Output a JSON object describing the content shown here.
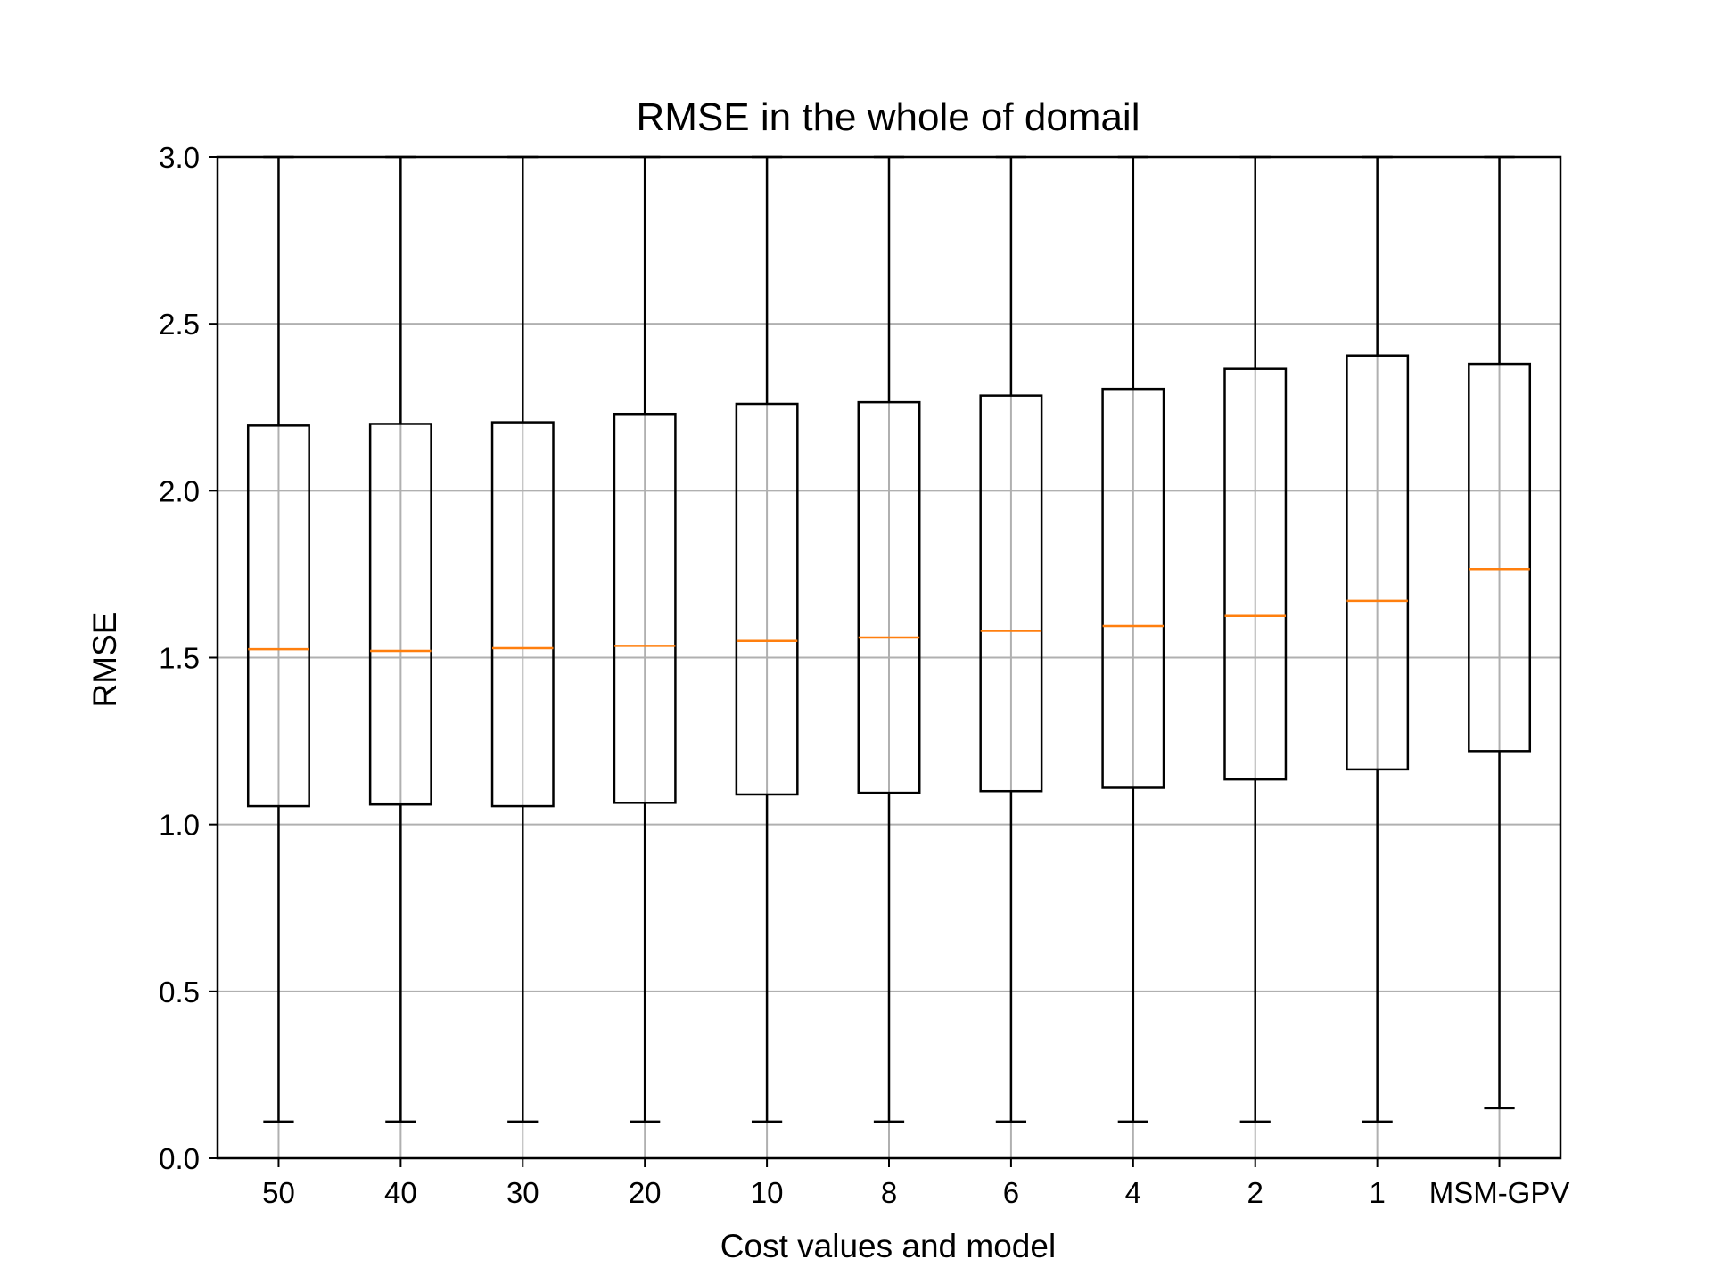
{
  "chart_data": {
    "type": "box",
    "title": "RMSE in the whole of domail",
    "xlabel": "Cost values and model",
    "ylabel": "RMSE",
    "ylim": [
      0.0,
      3.0
    ],
    "yticks": [
      "0.0",
      "0.5",
      "1.0",
      "1.5",
      "2.0",
      "2.5",
      "3.0"
    ],
    "ytick_values": [
      0.0,
      0.5,
      1.0,
      1.5,
      2.0,
      2.5,
      3.0
    ],
    "grid": true,
    "categories": [
      "50",
      "40",
      "30",
      "20",
      "10",
      "8",
      "6",
      "4",
      "2",
      "1",
      "MSM-GPV"
    ],
    "boxes": [
      {
        "whislo": 0.11,
        "q1": 1.055,
        "med": 1.525,
        "q3": 2.195,
        "whishi": 3.0
      },
      {
        "whislo": 0.11,
        "q1": 1.06,
        "med": 1.52,
        "q3": 2.2,
        "whishi": 3.0
      },
      {
        "whislo": 0.11,
        "q1": 1.055,
        "med": 1.528,
        "q3": 2.205,
        "whishi": 3.0
      },
      {
        "whislo": 0.11,
        "q1": 1.065,
        "med": 1.535,
        "q3": 2.23,
        "whishi": 3.0
      },
      {
        "whislo": 0.11,
        "q1": 1.09,
        "med": 1.55,
        "q3": 2.26,
        "whishi": 3.0
      },
      {
        "whislo": 0.11,
        "q1": 1.095,
        "med": 1.56,
        "q3": 2.265,
        "whishi": 3.0
      },
      {
        "whislo": 0.11,
        "q1": 1.1,
        "med": 1.58,
        "q3": 2.285,
        "whishi": 3.0
      },
      {
        "whislo": 0.11,
        "q1": 1.11,
        "med": 1.595,
        "q3": 2.305,
        "whishi": 3.0
      },
      {
        "whislo": 0.11,
        "q1": 1.135,
        "med": 1.625,
        "q3": 2.365,
        "whishi": 3.0
      },
      {
        "whislo": 0.11,
        "q1": 1.165,
        "med": 1.67,
        "q3": 2.405,
        "whishi": 3.0
      },
      {
        "whislo": 0.15,
        "q1": 1.22,
        "med": 1.765,
        "q3": 2.38,
        "whishi": 3.0
      }
    ],
    "colors": {
      "box": "#000000",
      "median": "#ff7f0e",
      "grid": "#b0b0b0",
      "axis": "#000000"
    }
  }
}
